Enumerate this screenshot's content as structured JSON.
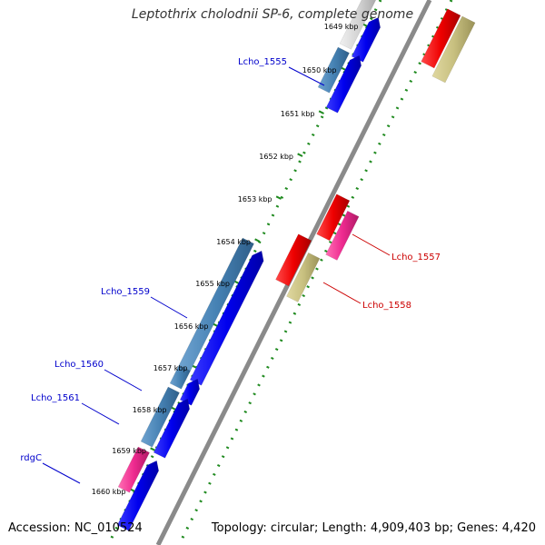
{
  "header": {
    "title": "Leptothrix cholodnii SP-6, complete genome"
  },
  "footer": {
    "accession": "Accession: NC_010524",
    "summary": "Topology: circular; Length: 4,909,403 bp; Genes: 4,420"
  },
  "colors": {
    "backbone": "#8a8a8a",
    "tick_ring": "#1f8a1f",
    "label_blue": "#0000cc",
    "label_red": "#cc0000",
    "gene_blue": "#0000ee",
    "gene_steel": "#4682b4",
    "gene_red": "#ee0000",
    "gene_pink": "#ee2a8f",
    "gene_khaki": "#c8c080",
    "gene_gray": "#d3d3d3"
  },
  "scale": {
    "tick_labels": [
      "1649 kbp",
      "1650 kbp",
      "1651 kbp",
      "1652 kbp",
      "1653 kbp",
      "1654 kbp",
      "1655 kbp",
      "1656 kbp",
      "1657 kbp",
      "1658 kbp",
      "1659 kbp",
      "1660 kbp"
    ]
  },
  "gene_labels": [
    {
      "id": "lcho-1555",
      "text": "Lcho_1555",
      "side": "left"
    },
    {
      "id": "lcho-1557",
      "text": "Lcho_1557",
      "side": "right"
    },
    {
      "id": "lcho-1558",
      "text": "Lcho_1558",
      "side": "right"
    },
    {
      "id": "lcho-1559",
      "text": "Lcho_1559",
      "side": "left"
    },
    {
      "id": "lcho-1560",
      "text": "Lcho_1560",
      "side": "left"
    },
    {
      "id": "lcho-1561",
      "text": "Lcho_1561",
      "side": "left"
    },
    {
      "id": "rdgc",
      "text": "rdgC",
      "side": "left"
    }
  ]
}
